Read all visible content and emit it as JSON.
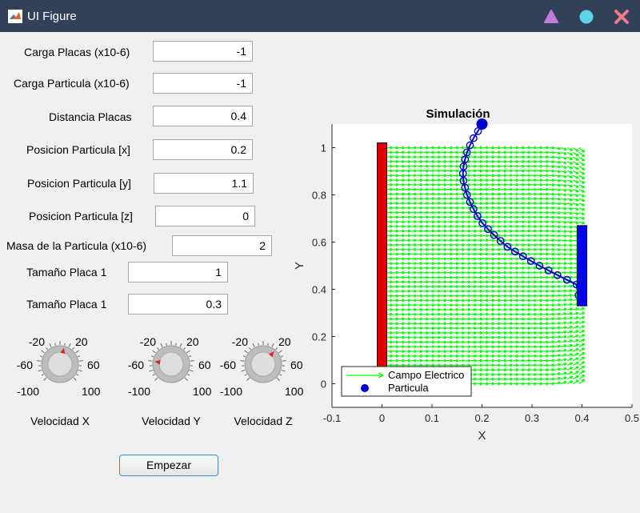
{
  "window": {
    "title": "UI Figure"
  },
  "controls": {
    "carga_placas": {
      "label": "Carga Placas (x10-6)",
      "value": "-1"
    },
    "carga_particula": {
      "label": "Carga Particula (x10-6)",
      "value": "-1"
    },
    "distancia_placas": {
      "label": "Distancia Placas",
      "value": "0.4"
    },
    "pos_x": {
      "label": "Posicion Particula [x]",
      "value": "0.2"
    },
    "pos_y": {
      "label": "Posicion Particula [y]",
      "value": "1.1"
    },
    "pos_z": {
      "label": "Posicion Particula [z]",
      "value": "0"
    },
    "masa": {
      "label": "Masa de la Particula (x10-6)",
      "value": "2"
    },
    "placa1": {
      "label": "Tamaño Placa 1",
      "value": "1"
    },
    "placa2": {
      "label": "Tamaño Placa 1",
      "value": "0.3"
    }
  },
  "knobs": [
    {
      "label": "Velocidad X",
      "value": 10,
      "ticks": [
        "-20",
        "20",
        "-60",
        "60",
        "-100",
        "100"
      ]
    },
    {
      "label": "Velocidad Y",
      "value": -60,
      "ticks": [
        "-20",
        "20",
        "-60",
        "60",
        "-100",
        "100"
      ]
    },
    {
      "label": "Velocidad Z",
      "value": 30,
      "ticks": [
        "-20",
        "20",
        "-60",
        "60",
        "-100",
        "100"
      ]
    }
  ],
  "start_button": "Empezar",
  "colors": {
    "titlebar": "#334158",
    "field_green": "#00ff00",
    "plate_left": "#dd0000",
    "plate_right": "#0000ee",
    "particle": "#0000cc"
  },
  "chart_data": {
    "type": "line",
    "title": "Simulación",
    "xlabel": "X",
    "ylabel": "Y",
    "xlim": [
      -0.1,
      0.5
    ],
    "ylim": [
      -0.1,
      1.1
    ],
    "xticks": [
      "-0.1",
      "0",
      "0.1",
      "0.2",
      "0.3",
      "0.4",
      "0.5"
    ],
    "yticks": [
      "0",
      "0.2",
      "0.4",
      "0.6",
      "0.8",
      "1"
    ],
    "legend": [
      "Campo Electrico",
      "Particula"
    ],
    "legend_position": "bottom-left",
    "plates": [
      {
        "x": 0,
        "y_range": [
          0,
          1.02
        ],
        "color": "red"
      },
      {
        "x": 0.4,
        "y_range": [
          0.33,
          0.67
        ],
        "color": "blue"
      }
    ],
    "series": [
      {
        "name": "Particula",
        "x": [
          0.2,
          0.192,
          0.183,
          0.176,
          0.17,
          0.166,
          0.163,
          0.162,
          0.163,
          0.166,
          0.17,
          0.176,
          0.183,
          0.191,
          0.201,
          0.212,
          0.224,
          0.237,
          0.251,
          0.266,
          0.282,
          0.298,
          0.315,
          0.333,
          0.351,
          0.37,
          0.389,
          0.393
        ],
        "y": [
          1.1,
          1.07,
          1.04,
          1.01,
          0.98,
          0.95,
          0.92,
          0.89,
          0.86,
          0.83,
          0.8,
          0.77,
          0.74,
          0.71,
          0.68,
          0.655,
          0.63,
          0.605,
          0.58,
          0.56,
          0.54,
          0.52,
          0.5,
          0.48,
          0.46,
          0.44,
          0.42,
          0.375
        ]
      }
    ]
  }
}
